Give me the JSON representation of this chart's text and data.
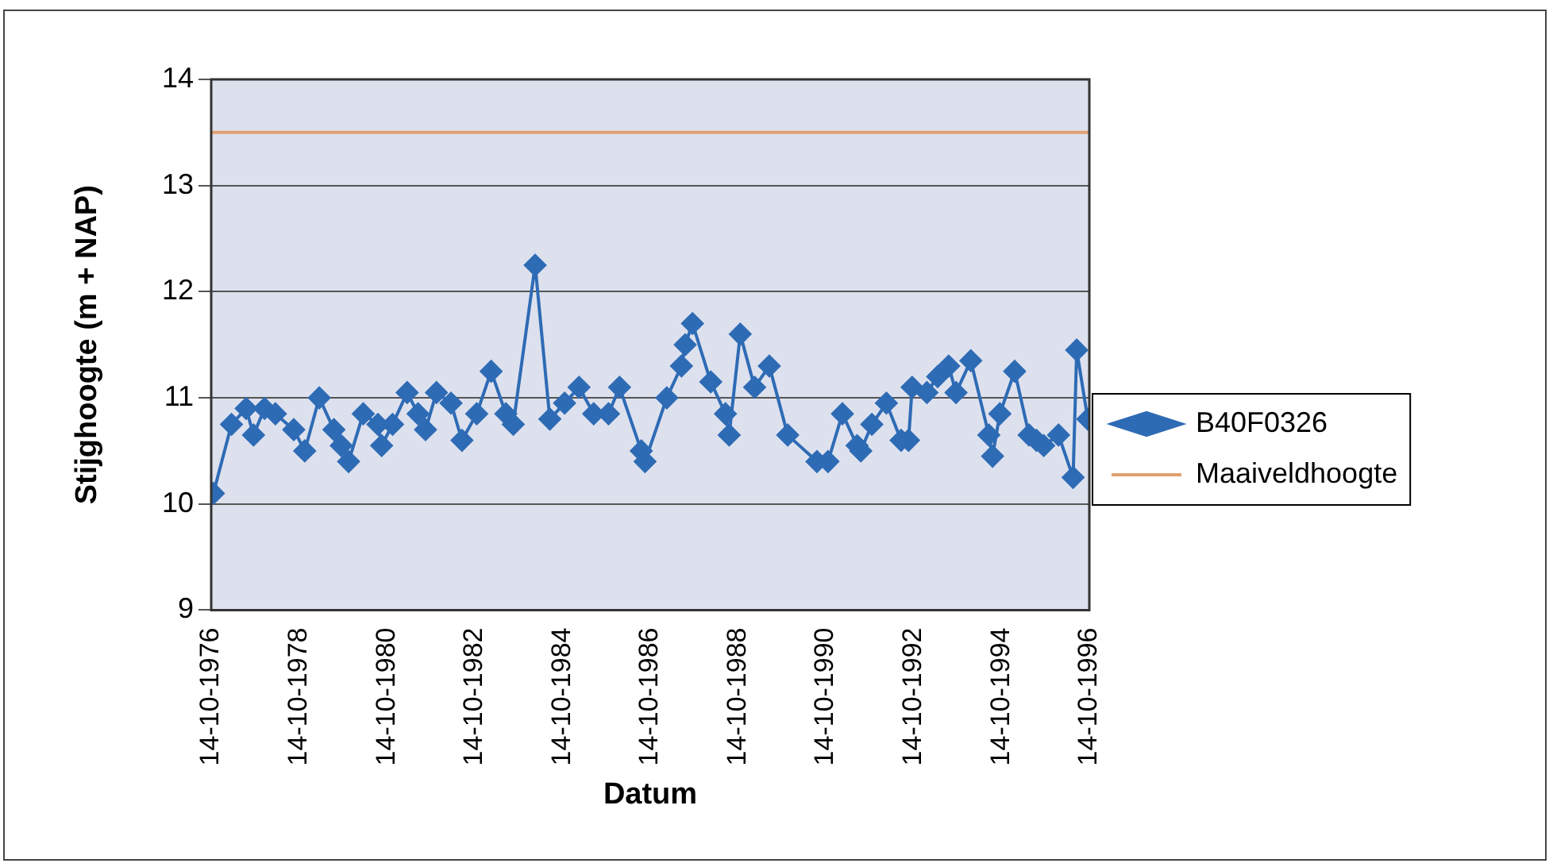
{
  "chart_data": {
    "type": "line",
    "xlabel": "Datum",
    "ylabel": "Stijghoogte (m + NAP)",
    "xlim": [
      "1976-10-14",
      "1996-10-14"
    ],
    "ylim": [
      9,
      14
    ],
    "yticks": [
      9,
      10,
      11,
      12,
      13,
      14
    ],
    "xticks": [
      {
        "value": "1976-10-14",
        "label": "14-10-1976"
      },
      {
        "value": "1978-10-14",
        "label": "14-10-1978"
      },
      {
        "value": "1980-10-14",
        "label": "14-10-1980"
      },
      {
        "value": "1982-10-14",
        "label": "14-10-1982"
      },
      {
        "value": "1984-10-14",
        "label": "14-10-1984"
      },
      {
        "value": "1986-10-14",
        "label": "14-10-1986"
      },
      {
        "value": "1988-10-14",
        "label": "14-10-1988"
      },
      {
        "value": "1990-10-14",
        "label": "14-10-1990"
      },
      {
        "value": "1992-10-14",
        "label": "14-10-1992"
      },
      {
        "value": "1994-10-14",
        "label": "14-10-1994"
      },
      {
        "value": "1996-10-14",
        "label": "14-10-1996"
      }
    ],
    "grid": "y",
    "legend": "right",
    "series": [
      {
        "name": "B40F0326",
        "color": "#2e6bb5",
        "marker": "diamond",
        "x": [
          "1976-11",
          "1977-04",
          "1977-08",
          "1977-10",
          "1978-01",
          "1978-04",
          "1978-09",
          "1978-12",
          "1979-04",
          "1979-08",
          "1979-10",
          "1979-12",
          "1980-04",
          "1980-08",
          "1980-09",
          "1980-12",
          "1981-04",
          "1981-07",
          "1981-09",
          "1981-12",
          "1982-04",
          "1982-07",
          "1982-11",
          "1983-03",
          "1983-07",
          "1983-09",
          "1984-03",
          "1984-07",
          "1984-11",
          "1985-03",
          "1985-07",
          "1985-11",
          "1986-02",
          "1986-08",
          "1986-09",
          "1987-03",
          "1987-07",
          "1987-08",
          "1987-10",
          "1988-03",
          "1988-07",
          "1988-08",
          "1988-11",
          "1989-03",
          "1989-07",
          "1989-12",
          "1990-08",
          "1990-11",
          "1991-03",
          "1991-07",
          "1991-08",
          "1991-11",
          "1992-03",
          "1992-07",
          "1992-09",
          "1992-10",
          "1993-02",
          "1993-05",
          "1993-08",
          "1993-10",
          "1994-02",
          "1994-07",
          "1994-08",
          "1994-10",
          "1995-02",
          "1995-06",
          "1995-08",
          "1995-10",
          "1996-02",
          "1996-06",
          "1996-07",
          "1996-10"
        ],
        "values": [
          10.1,
          10.75,
          10.9,
          10.65,
          10.9,
          10.85,
          10.7,
          10.5,
          11.0,
          10.7,
          10.55,
          10.4,
          10.85,
          10.75,
          10.55,
          10.75,
          11.05,
          10.85,
          10.7,
          11.05,
          10.95,
          10.6,
          10.85,
          11.25,
          10.85,
          10.75,
          12.25,
          10.8,
          10.95,
          11.1,
          10.85,
          10.85,
          11.1,
          10.5,
          10.4,
          11.0,
          11.3,
          11.5,
          11.7,
          11.15,
          10.85,
          10.65,
          11.6,
          11.1,
          11.3,
          10.65,
          10.4,
          10.4,
          10.85,
          10.55,
          10.5,
          10.75,
          10.95,
          10.6,
          10.6,
          11.1,
          11.05,
          11.2,
          11.3,
          11.05,
          11.35,
          10.65,
          10.45,
          10.85,
          11.25,
          10.65,
          10.6,
          10.55,
          10.65,
          10.25,
          11.45,
          10.8
        ]
      },
      {
        "name": "Maaiveldhoogte",
        "color": "#e0a070",
        "marker": "none",
        "x": [
          "1976-10-14",
          "1996-10-14"
        ],
        "values": [
          13.5,
          13.5
        ]
      }
    ]
  }
}
